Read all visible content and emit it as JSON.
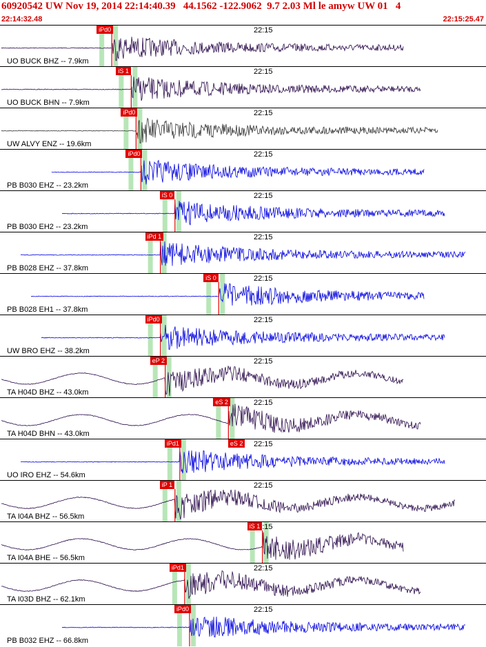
{
  "header": {
    "title": "60920542 UW Nov 19, 2014 22:14:40.39   44.1562 -122.9062  9.7 2.03 Ml le amyw UW 01   4",
    "start_time": "22:14:32.48",
    "end_time": "22:15:25.47"
  },
  "colors": {
    "header": "#d40000",
    "pick": "#e00000",
    "trace_dark": "#2a0a4a",
    "trace_blue": "#0000e0",
    "trace_black": "#333333",
    "window": "#b8e6b8"
  },
  "panels": [
    {
      "station": "UO BUCK BHZ -- 7.9km",
      "time_label": "22:15",
      "pick": "iPd0",
      "pick2": "",
      "color": "dark",
      "p_time": 0.23
    },
    {
      "station": "UO BUCK BHN -- 7.9km",
      "time_label": "22:15",
      "pick": "iS 1",
      "pick2": "",
      "color": "dark",
      "p_time": 0.27
    },
    {
      "station": "UW ALVY ENZ -- 19.6km",
      "time_label": "22:15",
      "pick": "iPd0",
      "pick2": "",
      "color": "black",
      "p_time": 0.28
    },
    {
      "station": "PB B030 EHZ -- 23.2km",
      "time_label": "22:15",
      "pick": "iPd0",
      "pick2": "",
      "color": "blue",
      "p_time": 0.29
    },
    {
      "station": "PB B030 EH2 -- 23.2km",
      "time_label": "22:15",
      "pick": "iS 0",
      "pick2": "",
      "color": "blue",
      "p_time": 0.36
    },
    {
      "station": "PB B028 EHZ -- 37.8km",
      "time_label": "22:15",
      "pick": "iPd 1",
      "pick2": "",
      "color": "blue",
      "p_time": 0.33
    },
    {
      "station": "PB B028 EH1 -- 37.8km",
      "time_label": "22:15",
      "pick": "iS 0",
      "pick2": "",
      "color": "blue",
      "p_time": 0.45
    },
    {
      "station": "UW BRO EHZ -- 38.2km",
      "time_label": "22:15",
      "pick": "iPd0",
      "pick2": "",
      "color": "blue",
      "p_time": 0.33
    },
    {
      "station": "TA H04D BHZ -- 43.0km",
      "time_label": "22:15",
      "pick": "eP 2",
      "pick2": "",
      "color": "dark",
      "p_time": 0.34
    },
    {
      "station": "TA H04D BHN -- 43.0km",
      "time_label": "22:15",
      "pick": "eS 2",
      "pick2": "",
      "color": "dark",
      "p_time": 0.47
    },
    {
      "station": "UO IRO EHZ -- 54.6km",
      "time_label": "22:15",
      "pick": "iPd1",
      "pick2": "eS 2",
      "color": "blue",
      "p_time": 0.37
    },
    {
      "station": "TA I04A BHZ -- 56.5km",
      "time_label": "22:15",
      "pick": "iP 1",
      "pick2": "",
      "color": "dark",
      "p_time": 0.36
    },
    {
      "station": "TA I04A BHE -- 56.5km",
      "time_label": "22:15",
      "pick": "iS 1",
      "pick2": "",
      "color": "dark",
      "p_time": 0.54
    },
    {
      "station": "TA I03D BHZ -- 62.1km",
      "time_label": "22:15",
      "pick": "iPd1",
      "pick2": "",
      "color": "dark",
      "p_time": 0.38
    },
    {
      "station": "PB B032 EHZ -- 66.8km",
      "time_label": "22:15",
      "pick": "iPd0",
      "pick2": "",
      "color": "blue",
      "p_time": 0.39
    }
  ]
}
